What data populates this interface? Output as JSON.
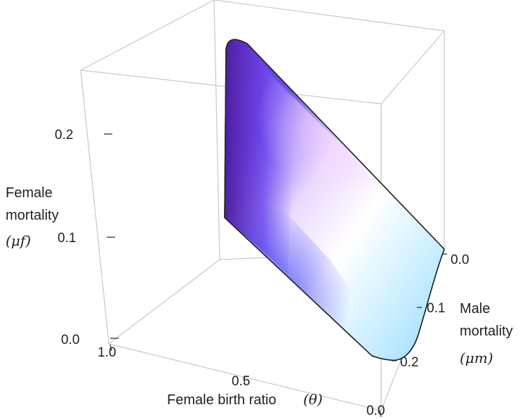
{
  "chart_data": {
    "type": "area",
    "surface": {
      "description": "shaded 3D region bounded by curve",
      "boundary_points": [
        {
          "theta": 0.5,
          "mu_m": 0.0,
          "mu_f": 0.22
        },
        {
          "theta": 0.0,
          "mu_m": 0.0,
          "mu_f": 0.0
        },
        {
          "theta": 0.0,
          "mu_m": 0.25,
          "mu_f": 0.0
        },
        {
          "theta": 0.5,
          "mu_m": 0.0,
          "mu_f": 0.0
        }
      ]
    },
    "axes": {
      "theta": {
        "label": "Female birth ratio",
        "label_symbol": "(θ)",
        "ticks": [
          "1.0",
          "0.5",
          "0.0"
        ],
        "range": [
          0,
          1
        ]
      },
      "mu_m": {
        "label_lines": [
          "Male",
          "mortality"
        ],
        "label_symbol": "(μm)",
        "ticks": [
          "0.0",
          "0.1",
          "0.2"
        ],
        "range": [
          0,
          0.25
        ]
      },
      "mu_f": {
        "label_lines": [
          "Female",
          "mortality"
        ],
        "label_symbol": "(μf)",
        "ticks": [
          "0.2",
          "0.1",
          "0.0"
        ],
        "range": [
          0,
          0.25
        ]
      }
    },
    "colors": {
      "surface_dark": "#5a22b8",
      "surface_mid": "#6f6ff0",
      "surface_light": "#d7f2ff",
      "highlight_pink": "#f6d8ff",
      "box_line": "#c7c7c7",
      "tick": "#222222"
    }
  }
}
